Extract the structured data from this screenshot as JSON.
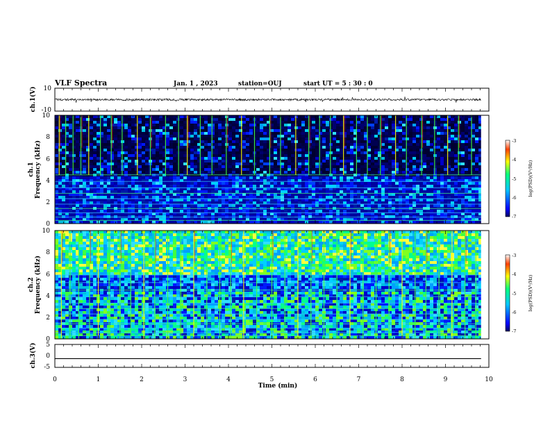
{
  "header": {
    "title": "VLF Spectra",
    "date": "Jan.  1 , 2023",
    "station": "station=OUJ",
    "start_ut": "start  UT  =   5  : 30 : 0"
  },
  "chart_data": [
    {
      "type": "line",
      "panel": "ch1-waveform",
      "ylabel": "ch.1(V)",
      "ylim": [
        -10,
        10
      ],
      "yticks": [
        "10",
        "-10"
      ],
      "xlim": [
        0,
        10
      ],
      "baseline_value": 0,
      "color": "#000000"
    },
    {
      "type": "heatmap",
      "panel": "ch1-spectrogram",
      "ylabel_line1": "ch.1",
      "ylabel_line2": "Frequency (kHz)",
      "ylim": [
        0,
        10
      ],
      "yticks": [
        "0",
        "2",
        "4",
        "6",
        "8",
        "10"
      ],
      "xlim": [
        0,
        10
      ],
      "data_end_min": 9.82,
      "colorbar": {
        "label": "log(PSD)(V²/Hz)",
        "range": [
          -7,
          -3
        ],
        "ticks": [
          "-3",
          "-4",
          "-5",
          "-6",
          "-7"
        ],
        "colormap": [
          "#000060",
          "#0000ff",
          "#00c8ff",
          "#00ff80",
          "#ffff00",
          "#ff4000",
          "#ffffff"
        ]
      },
      "narrowband_lines_khz": [
        0.3,
        0.6,
        1.0,
        1.4,
        1.8,
        2.3,
        2.8,
        3.3,
        3.9,
        4.5
      ],
      "burst_times_min": [
        0.1,
        0.25,
        0.42,
        0.6,
        0.78,
        1.05,
        1.3,
        1.55,
        1.9,
        2.2,
        2.55,
        2.85,
        3.05,
        3.35,
        3.62,
        3.95,
        4.3,
        4.6,
        4.95,
        5.2,
        5.55,
        5.85,
        6.1,
        6.35,
        6.65,
        6.95,
        7.2,
        7.5,
        7.85,
        8.1,
        8.45,
        8.75,
        9.05,
        9.3,
        9.6
      ]
    },
    {
      "type": "heatmap",
      "panel": "ch2-spectrogram",
      "ylabel_line1": "ch.2",
      "ylabel_line2": "Frequency (kHz)",
      "ylim": [
        0,
        10
      ],
      "yticks": [
        "0",
        "2",
        "4",
        "6",
        "8",
        "10"
      ],
      "xlim": [
        0,
        10
      ],
      "data_end_min": 9.82,
      "colorbar": {
        "label": "log(PSD)(V²/Hz)",
        "range": [
          -7,
          -3
        ],
        "ticks": [
          "-3",
          "-4",
          "-5",
          "-6",
          "-7"
        ],
        "colormap": [
          "#000060",
          "#0000ff",
          "#00c8ff",
          "#00ff80",
          "#ffff00",
          "#ff4000",
          "#ffffff"
        ]
      },
      "narrowband_lines_khz": [
        0.3,
        0.6,
        1.0,
        1.4,
        1.8,
        2.3,
        2.8,
        3.3,
        3.9,
        4.5,
        5.2,
        5.9
      ],
      "burst_times_min": [
        0.15,
        0.35,
        0.55,
        0.8,
        1.0,
        1.25,
        1.5,
        1.75,
        2.05,
        2.3,
        2.6,
        2.9,
        3.2,
        3.5,
        3.8,
        4.05,
        4.35,
        4.65,
        5.0,
        5.3,
        5.6,
        5.9,
        6.2,
        6.5,
        6.8,
        7.1,
        7.4,
        7.7,
        8.0,
        8.3,
        8.55,
        8.85,
        9.15,
        9.45,
        9.7
      ]
    },
    {
      "type": "line",
      "panel": "ch3-waveform",
      "ylabel": "ch.3(V)",
      "ylim": [
        -5,
        5
      ],
      "yticks": [
        "5",
        "0",
        "-5"
      ],
      "xlim": [
        0,
        10
      ],
      "xlabel": "Time  (min)",
      "xticks": [
        "0",
        "1",
        "2",
        "3",
        "4",
        "5",
        "6",
        "7",
        "8",
        "9",
        "10"
      ],
      "constant_value": -1.2,
      "color": "#000000"
    }
  ]
}
